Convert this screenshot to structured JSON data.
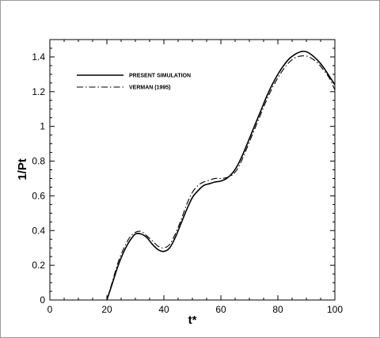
{
  "chart_data": {
    "type": "line",
    "title": "",
    "xlabel": "t*",
    "ylabel": "1/Pt",
    "xlim": [
      0,
      100
    ],
    "ylim": [
      0,
      1.5
    ],
    "x_ticks": [
      0,
      20,
      40,
      60,
      80,
      100
    ],
    "y_ticks": [
      0,
      0.2,
      0.4,
      0.6,
      0.8,
      1,
      1.2,
      1.4
    ],
    "x_tick_labels": [
      "0",
      "20",
      "40",
      "60",
      "80",
      "100"
    ],
    "y_tick_labels": [
      "0",
      "0.2",
      "0.4",
      "0.6",
      "0.8",
      "1",
      "1.2",
      "1.4"
    ],
    "grid": false,
    "legend_position": "top-left",
    "series": [
      {
        "name": "PRESENT SIMULATION",
        "style": "solid",
        "x": [
          20,
          22,
          24,
          26,
          28,
          30,
          32,
          34,
          36,
          38,
          40,
          42,
          44,
          46,
          48,
          50,
          52,
          54,
          56,
          58,
          60,
          62,
          64,
          66,
          68,
          70,
          72,
          74,
          76,
          78,
          80,
          82,
          84,
          86,
          88,
          90,
          92,
          94,
          96,
          98,
          100
        ],
        "y": [
          0.0,
          0.1,
          0.2,
          0.28,
          0.34,
          0.38,
          0.38,
          0.36,
          0.32,
          0.29,
          0.28,
          0.3,
          0.36,
          0.44,
          0.52,
          0.59,
          0.63,
          0.66,
          0.67,
          0.68,
          0.685,
          0.7,
          0.73,
          0.78,
          0.85,
          0.93,
          1.01,
          1.09,
          1.17,
          1.24,
          1.3,
          1.35,
          1.39,
          1.415,
          1.43,
          1.43,
          1.41,
          1.38,
          1.34,
          1.29,
          1.24
        ]
      },
      {
        "name": "VERMAN (1995)",
        "style": "dashdot",
        "x": [
          20,
          22,
          24,
          26,
          28,
          30,
          32,
          34,
          36,
          38,
          40,
          42,
          44,
          46,
          48,
          50,
          52,
          54,
          56,
          58,
          60,
          62,
          64,
          66,
          68,
          70,
          72,
          74,
          76,
          78,
          80,
          82,
          84,
          86,
          88,
          90,
          92,
          94,
          96,
          98,
          100
        ],
        "y": [
          0.0,
          0.11,
          0.22,
          0.3,
          0.36,
          0.39,
          0.395,
          0.37,
          0.34,
          0.31,
          0.3,
          0.32,
          0.38,
          0.46,
          0.55,
          0.62,
          0.66,
          0.68,
          0.69,
          0.7,
          0.7,
          0.705,
          0.72,
          0.76,
          0.83,
          0.91,
          0.99,
          1.07,
          1.15,
          1.22,
          1.28,
          1.33,
          1.37,
          1.395,
          1.405,
          1.405,
          1.39,
          1.365,
          1.325,
          1.28,
          1.21
        ]
      }
    ]
  }
}
